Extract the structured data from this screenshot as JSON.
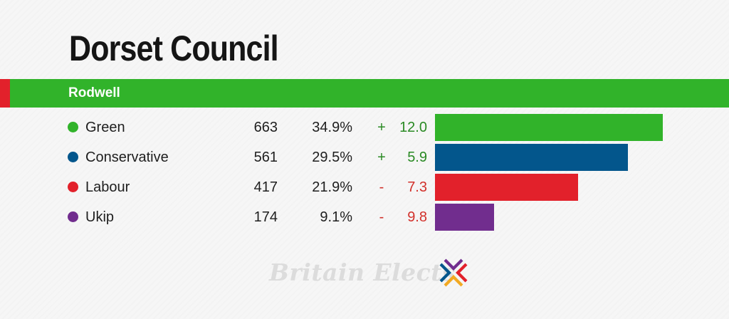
{
  "header": {
    "title": "Dorset Council"
  },
  "ward": {
    "name": "Rodwell",
    "colors": {
      "stripe": "#e2212b",
      "fill": "#31b32a"
    }
  },
  "chart_data": {
    "type": "bar",
    "orientation": "horizontal",
    "title": "Dorset Council",
    "subtitle": "Rodwell",
    "max_share": 34.9,
    "rows": [
      {
        "party": "Green",
        "votes": "663",
        "share": "34.9%",
        "share_value": 34.9,
        "sign": "+",
        "change": "12.0",
        "color": "#31b32a",
        "change_color": "#2a8a24"
      },
      {
        "party": "Conservative",
        "votes": "561",
        "share": "29.5%",
        "share_value": 29.5,
        "sign": "+",
        "change": "5.9",
        "color": "#03568c",
        "change_color": "#2a8a24"
      },
      {
        "party": "Labour",
        "votes": "417",
        "share": "21.9%",
        "share_value": 21.9,
        "sign": "-",
        "change": "7.3",
        "color": "#e2212b",
        "change_color": "#d2312b"
      },
      {
        "party": "Ukip",
        "votes": "174",
        "share": "9.1%",
        "share_value": 9.1,
        "sign": "-",
        "change": "9.8",
        "color": "#712d8e",
        "change_color": "#d2312b"
      }
    ]
  },
  "footer": {
    "brand": "Britain Elects",
    "logo_icon": "britain-elects-x-icon"
  }
}
